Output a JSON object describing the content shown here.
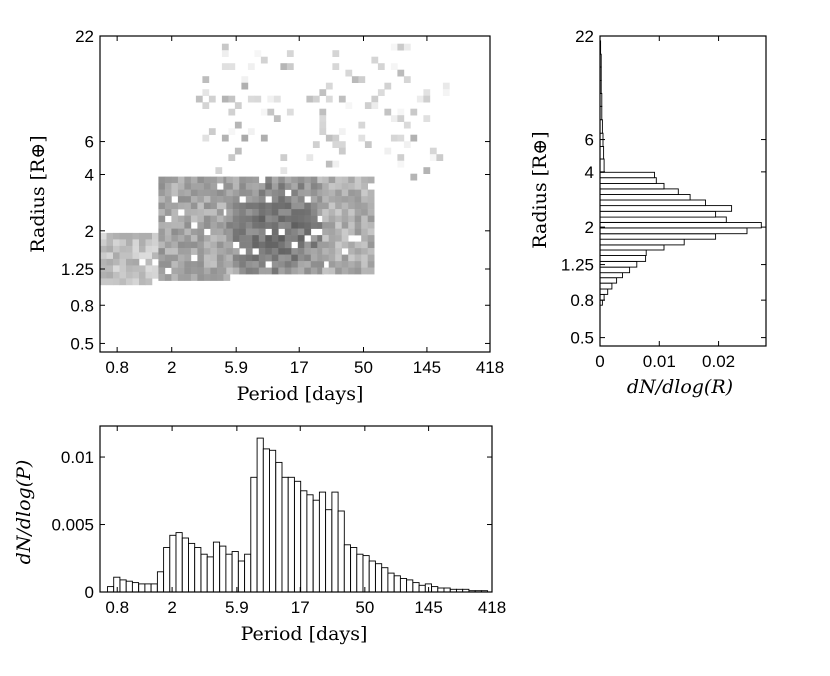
{
  "chart_data": [
    {
      "type": "heatmap",
      "xlabel": "Period [days]",
      "ylabel": "Radius [R⊕]",
      "x_scale": "log",
      "y_scale": "log",
      "xlim": [
        0.6,
        418
      ],
      "ylim": [
        0.45,
        22
      ],
      "x_ticks": [
        0.8,
        2,
        5.9,
        17,
        50,
        145,
        418
      ],
      "x_tick_labels": [
        "0.8",
        "2",
        "5.9",
        "17",
        "50",
        "145",
        "418"
      ],
      "y_ticks": [
        0.5,
        0.8,
        1.25,
        2,
        4,
        6,
        22
      ],
      "y_tick_labels": [
        "0.5",
        "0.8",
        "1.25",
        "2",
        "4",
        "6",
        "22"
      ],
      "colormap": "grayscale (dark = high density)",
      "regions": [
        {
          "x_range": [
            0.6,
            1.6
          ],
          "y_range": [
            1.05,
            1.95
          ],
          "density": 0.35
        },
        {
          "x_range": [
            1.6,
            5.0
          ],
          "y_range": [
            1.1,
            3.9
          ],
          "density": 0.5
        },
        {
          "x_range": [
            5.0,
            25
          ],
          "y_range": [
            1.2,
            3.9
          ],
          "density": 0.8
        },
        {
          "x_range": [
            25,
            60
          ],
          "y_range": [
            1.25,
            3.9
          ],
          "density": 0.45
        },
        {
          "x_range": [
            3,
            200
          ],
          "y_range": [
            3.9,
            20
          ],
          "density": 0.08
        }
      ]
    },
    {
      "type": "bar",
      "orientation": "horizontal",
      "xlabel": "dN/dlog(R)",
      "ylabel": "Radius [R⊕]",
      "y_scale": "log",
      "xlim": [
        0,
        0.028
      ],
      "ylim": [
        0.45,
        22
      ],
      "x_ticks": [
        0,
        0.01,
        0.02
      ],
      "x_tick_labels": [
        "0",
        "0.01",
        "0.02"
      ],
      "y_ticks": [
        0.5,
        0.8,
        1.25,
        2,
        4,
        6,
        22
      ],
      "y_tick_labels": [
        "0.5",
        "0.8",
        "1.25",
        "2",
        "4",
        "6",
        "22"
      ],
      "bin_edges": [
        0.75,
        0.8,
        0.86,
        0.92,
        0.99,
        1.06,
        1.13,
        1.21,
        1.3,
        1.4,
        1.5,
        1.6,
        1.72,
        1.84,
        1.98,
        2.12,
        2.27,
        2.44,
        2.62,
        2.81,
        3.01,
        3.23,
        3.46,
        3.72,
        3.98
      ],
      "values": [
        0.0004,
        0.0007,
        0.0013,
        0.002,
        0.0028,
        0.0038,
        0.005,
        0.0062,
        0.0077,
        0.0078,
        0.0108,
        0.0142,
        0.0195,
        0.0248,
        0.0272,
        0.0213,
        0.0195,
        0.0222,
        0.0178,
        0.0152,
        0.0132,
        0.0108,
        0.0095,
        0.0092
      ],
      "tail_bin_edges": [
        3.98,
        4.7,
        5.5,
        6.5,
        7.7,
        9.1,
        10.7,
        12.6,
        14.9,
        17.5,
        20.7
      ],
      "tail_values": [
        0.0007,
        0.0006,
        0.0005,
        0.0004,
        0.0003,
        0.0003,
        0.0002,
        0.0002,
        0.0002,
        0.0001
      ]
    },
    {
      "type": "bar",
      "xlabel": "Period [days]",
      "ylabel": "dN/dlog(P)",
      "x_scale": "log",
      "xlim": [
        0.6,
        418
      ],
      "ylim": [
        0,
        0.0123
      ],
      "x_ticks": [
        0.8,
        2,
        5.9,
        17,
        50,
        145,
        418
      ],
      "x_tick_labels": [
        "0.8",
        "2",
        "5.9",
        "17",
        "50",
        "145",
        "418"
      ],
      "y_ticks": [
        0,
        0.005,
        0.01
      ],
      "y_tick_labels": [
        "0",
        "0.005",
        "0.01"
      ],
      "x_start": 0.68,
      "bin_width_log10": 0.0452,
      "values": [
        0.0004,
        0.0011,
        0.0009,
        0.0008,
        0.0007,
        0.0006,
        0.0006,
        0.0006,
        0.0015,
        0.0033,
        0.0042,
        0.0044,
        0.004,
        0.0036,
        0.0033,
        0.0028,
        0.0026,
        0.0037,
        0.0034,
        0.0028,
        0.003,
        0.0023,
        0.0028,
        0.0085,
        0.0114,
        0.0106,
        0.0105,
        0.0096,
        0.0085,
        0.0085,
        0.0082,
        0.0075,
        0.0072,
        0.0068,
        0.0074,
        0.0061,
        0.0074,
        0.006,
        0.0035,
        0.0033,
        0.0028,
        0.0027,
        0.0023,
        0.0021,
        0.0018,
        0.0014,
        0.0012,
        0.001,
        0.0009,
        0.0007,
        0.0005,
        0.0006,
        0.0004,
        0.0003,
        0.0003,
        0.0002,
        0.0002,
        0.0002,
        0.0001,
        0.0001,
        0.0001,
        0.0001
      ]
    }
  ]
}
